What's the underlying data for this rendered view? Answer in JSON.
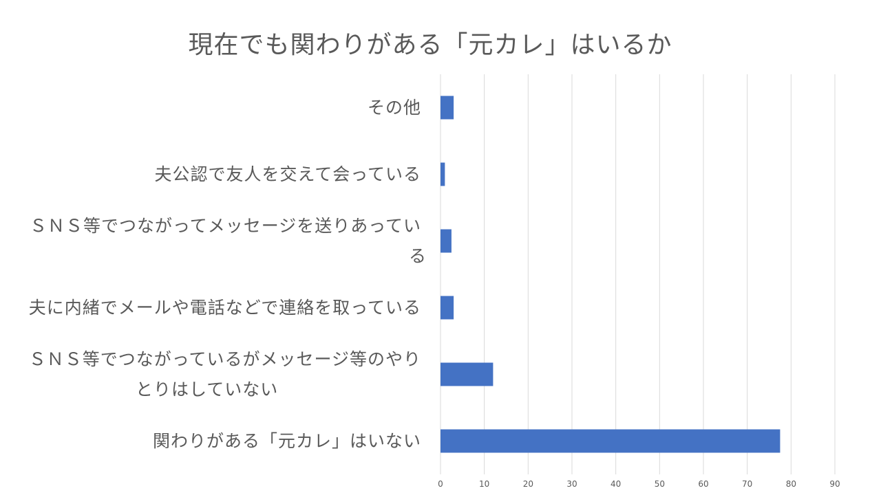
{
  "chart_data": {
    "type": "bar",
    "orientation": "horizontal",
    "title": "現在でも関わりがある「元カレ」はいるか",
    "categories": [
      "その他",
      "夫公認で友人を交えて会っている",
      "ＳＮＳ等でつながってメッセージを送りあっている",
      "夫に内緒でメールや電話などで連絡を取っている",
      "ＳＮＳ等でつながっているがメッセージ等のやりとりはしていない",
      "関わりがある「元カレ」はいない"
    ],
    "category_lines": [
      [
        "その他"
      ],
      [
        "夫公認で友人を交えて会っている"
      ],
      [
        "ＳＮＳ等でつながってメッセージを送りあってい",
        "る"
      ],
      [
        "夫に内緒でメールや電話などで連絡を取っている"
      ],
      [
        "ＳＮＳ等でつながっているがメッセージ等のやり",
        "とりはしていない"
      ],
      [
        "関わりがある「元カレ」はいない"
      ]
    ],
    "values": [
      3,
      1,
      2.5,
      3,
      12,
      77.5
    ],
    "xlim": [
      0,
      90
    ],
    "xticks": [
      "0",
      "10",
      "20",
      "30",
      "40",
      "50",
      "60",
      "70",
      "80",
      "90"
    ],
    "grid": true,
    "bar_color": "#4472C4",
    "grid_color": "#D9D9D9"
  }
}
